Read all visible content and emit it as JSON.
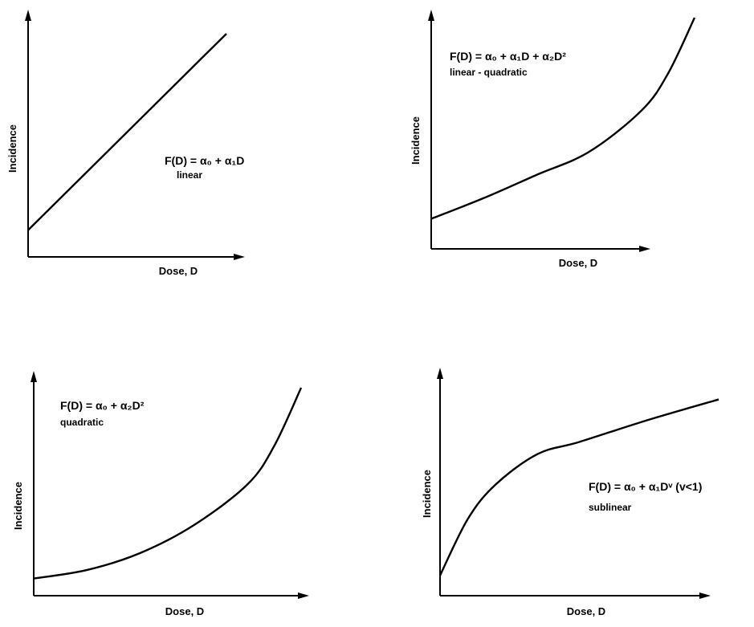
{
  "chart_data": [
    {
      "type": "line",
      "xlabel": "Dose, D",
      "ylabel": "Incidence",
      "equation": "F(D) = α₀ + α₁D",
      "kind": "linear",
      "series": [
        {
          "x": [
            0,
            0.25,
            0.5,
            0.75,
            1.0
          ],
          "values": [
            0.12,
            0.34,
            0.56,
            0.78,
            1.0
          ]
        }
      ]
    },
    {
      "type": "line",
      "xlabel": "Dose, D",
      "ylabel": "Incidence",
      "equation": "F(D) = α₀ + α₁D + α₂D²",
      "kind": "linear - quadratic",
      "series": [
        {
          "x": [
            0,
            0.2,
            0.4,
            0.6,
            0.8,
            0.9,
            1.0
          ],
          "values": [
            0.13,
            0.22,
            0.32,
            0.42,
            0.6,
            0.76,
            1.0
          ]
        }
      ]
    },
    {
      "type": "line",
      "xlabel": "Dose, D",
      "ylabel": "Incidence",
      "equation": "F(D) = α₀ + α₂D²",
      "kind": "quadratic",
      "series": [
        {
          "x": [
            0,
            0.2,
            0.4,
            0.6,
            0.8,
            0.9,
            1.0
          ],
          "values": [
            0.08,
            0.12,
            0.2,
            0.33,
            0.52,
            0.7,
            0.97
          ]
        }
      ]
    },
    {
      "type": "line",
      "xlabel": "Dose, D",
      "ylabel": "Incidence",
      "equation": "F(D) = α₀ + α₁Dᵛ (v<1)",
      "kind": "sublinear",
      "series": [
        {
          "x": [
            0,
            0.1,
            0.2,
            0.35,
            0.5,
            0.75,
            1.0
          ],
          "values": [
            0.1,
            0.38,
            0.55,
            0.7,
            0.76,
            0.87,
            0.97
          ]
        }
      ]
    }
  ]
}
